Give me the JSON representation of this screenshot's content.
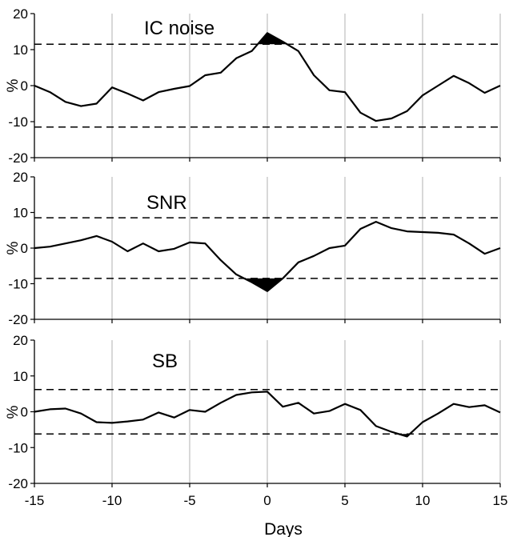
{
  "chart_data": [
    {
      "type": "line",
      "title": "IC noise",
      "ylabel": "%",
      "xlabel": "",
      "xlim": [
        -15,
        15
      ],
      "ylim": [
        -20,
        20
      ],
      "xticks": [
        -15,
        -10,
        -5,
        0,
        5,
        10,
        15
      ],
      "yticks": [
        -20,
        -10,
        0,
        10,
        20
      ],
      "grid": "vertical",
      "thresholds": [
        11.5,
        -11.5
      ],
      "x": [
        -15,
        -14,
        -13,
        -12,
        -11,
        -10,
        -9,
        -8,
        -7,
        -6,
        -5,
        -4,
        -3,
        -2,
        -1,
        0,
        1,
        2,
        3,
        4,
        5,
        6,
        7,
        8,
        9,
        10,
        11,
        12,
        13,
        14,
        15
      ],
      "values": [
        0,
        -1.8,
        -4.5,
        -5.7,
        -5.0,
        -0.5,
        -2.2,
        -4.1,
        -1.8,
        -0.9,
        -0.1,
        2.9,
        3.6,
        7.6,
        9.6,
        14.6,
        12.2,
        9.6,
        2.9,
        -1.3,
        -1.8,
        -7.5,
        -9.8,
        -9.1,
        -7.1,
        -2.7,
        0,
        2.7,
        0.7,
        -2.0,
        0
      ]
    },
    {
      "type": "line",
      "title": "SNR",
      "ylabel": "%",
      "xlabel": "",
      "xlim": [
        -15,
        15
      ],
      "ylim": [
        -20,
        20
      ],
      "xticks": [
        -15,
        -10,
        -5,
        0,
        5,
        10,
        15
      ],
      "yticks": [
        -20,
        -10,
        0,
        10,
        20
      ],
      "grid": "vertical",
      "thresholds": [
        8.5,
        -8.5
      ],
      "x": [
        -15,
        -14,
        -13,
        -12,
        -11,
        -10,
        -9,
        -8,
        -7,
        -6,
        -5,
        -4,
        -3,
        -2,
        -1,
        0,
        1,
        2,
        3,
        4,
        5,
        6,
        7,
        8,
        9,
        10,
        11,
        12,
        13,
        14,
        15
      ],
      "values": [
        0,
        0.4,
        1.3,
        2.2,
        3.4,
        1.8,
        -0.9,
        1.3,
        -0.9,
        -0.2,
        1.6,
        1.3,
        -3.4,
        -7.4,
        -9.6,
        -12.1,
        -8.5,
        -4.0,
        -2.2,
        0,
        0.7,
        5.4,
        7.4,
        5.6,
        4.7,
        4.5,
        4.3,
        3.8,
        1.3,
        -1.6,
        0
      ]
    },
    {
      "type": "line",
      "title": "SB",
      "ylabel": "%",
      "xlabel": "Days",
      "xlim": [
        -15,
        15
      ],
      "ylim": [
        -20,
        20
      ],
      "xticks": [
        -15,
        -10,
        -5,
        0,
        5,
        10,
        15
      ],
      "yticks": [
        -20,
        -10,
        0,
        10,
        20
      ],
      "grid": "vertical",
      "thresholds": [
        6.2,
        -6.2
      ],
      "x": [
        -15,
        -14,
        -13,
        -12,
        -11,
        -10,
        -9,
        -8,
        -7,
        -6,
        -5,
        -4,
        -3,
        -2,
        -1,
        0,
        1,
        2,
        3,
        4,
        5,
        6,
        7,
        8,
        9,
        10,
        11,
        12,
        13,
        14,
        15
      ],
      "values": [
        0,
        0.7,
        0.9,
        -0.5,
        -2.9,
        -3.1,
        -2.7,
        -2.2,
        -0.2,
        -1.6,
        0.5,
        0,
        2.5,
        4.7,
        5.4,
        5.6,
        1.4,
        2.5,
        -0.5,
        0.2,
        2.2,
        0.5,
        -4.0,
        -5.6,
        -6.9,
        -2.9,
        -0.5,
        2.2,
        1.3,
        1.8,
        -0.2
      ]
    }
  ]
}
